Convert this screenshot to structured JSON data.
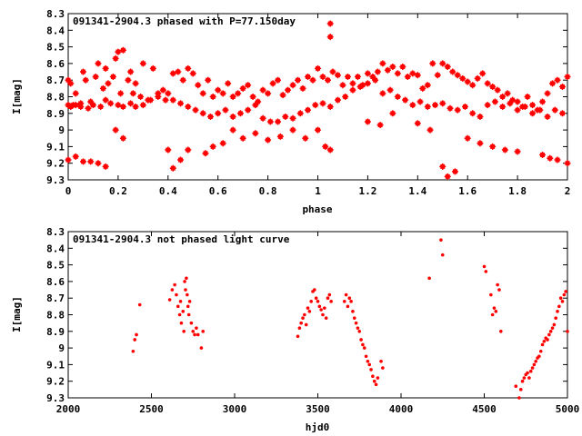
{
  "chart_data": [
    {
      "type": "scatter",
      "title": "091341-2904.3 phased with P=77.150day",
      "xlabel": "phase",
      "ylabel": "I[mag]",
      "xlim": [
        0,
        2
      ],
      "ylim": [
        8.3,
        9.3
      ],
      "y_inverted": true,
      "x_ticks": [
        0,
        0.2,
        0.4,
        0.6,
        0.8,
        1,
        1.2,
        1.4,
        1.6,
        1.8,
        2
      ],
      "x_tick_labels": [
        "0",
        "0.2",
        "0.4",
        "0.6",
        "0.8",
        "1",
        "1.2",
        "1.4",
        "1.6",
        "1.8",
        "2"
      ],
      "y_ticks": [
        8.3,
        8.4,
        8.5,
        8.6,
        8.7,
        8.8,
        8.9,
        9,
        9.1,
        9.2,
        9.3
      ],
      "y_tick_labels": [
        "8.3",
        "8.4",
        "8.5",
        "8.6",
        "8.7",
        "8.8",
        "8.9",
        "9",
        "9.1",
        "9.2",
        "9.3"
      ],
      "marker": "star",
      "marker_color": "#ff0000",
      "grid": false,
      "series": [
        {
          "x": [
            0.0,
            0.01,
            0.02,
            0.03,
            0.05,
            0.06,
            0.07,
            0.09,
            0.11,
            0.12,
            0.14,
            0.15,
            0.16,
            0.18,
            0.19,
            0.2,
            0.21,
            0.22,
            0.24,
            0.25,
            0.26,
            0.27,
            0.29,
            0.3,
            0.32,
            0.34,
            0.36,
            0.38,
            0.4,
            0.42,
            0.44,
            0.46,
            0.48,
            0.5,
            0.52,
            0.54,
            0.56,
            0.58,
            0.6,
            0.62,
            0.64,
            0.66,
            0.68,
            0.7,
            0.72,
            0.74,
            0.76,
            0.78,
            0.8,
            0.82,
            0.84,
            0.86,
            0.88,
            0.9,
            0.92,
            0.94,
            0.96,
            0.98,
            1.0,
            1.02,
            1.04,
            1.06,
            1.08,
            1.1,
            1.12,
            1.14,
            1.16,
            1.18,
            1.2,
            1.22,
            1.24,
            1.26,
            1.28,
            1.3,
            1.32,
            1.34,
            1.36,
            1.38,
            1.4,
            1.42,
            1.44,
            1.46,
            1.48,
            1.5,
            1.52,
            1.54,
            1.56,
            1.58,
            1.6,
            1.62,
            1.64,
            1.66,
            1.68,
            1.7,
            1.72,
            1.74,
            1.76,
            1.78,
            1.8,
            1.82,
            1.84,
            1.86,
            1.88,
            1.9,
            1.92,
            1.94,
            1.96,
            1.98,
            2.0,
            0.0,
            0.01,
            0.03,
            0.05,
            0.08,
            0.1,
            0.13,
            0.15,
            0.17,
            0.2,
            0.22,
            0.25,
            0.27,
            0.3,
            0.33,
            0.36,
            0.39,
            0.42,
            0.45,
            0.48,
            0.51,
            0.54,
            0.57,
            0.6,
            0.63,
            0.66,
            0.69,
            0.72,
            0.75,
            0.78,
            0.81,
            0.84,
            0.87,
            0.9,
            0.93,
            0.96,
            0.99,
            1.02,
            1.05,
            1.08,
            1.11,
            1.14,
            1.17,
            1.2,
            1.23,
            1.26,
            1.29,
            1.32,
            1.35,
            1.38,
            1.41,
            1.44,
            1.47,
            1.5,
            1.53,
            1.56,
            1.59,
            1.62,
            1.65,
            1.68,
            1.71,
            1.74,
            1.77,
            1.8,
            1.83,
            1.86,
            1.89,
            1.92,
            1.95,
            1.98,
            0.0,
            0.03,
            0.06,
            0.09,
            0.12,
            0.15,
            0.19,
            0.22,
            0.4,
            0.42,
            0.45,
            0.48,
            0.55,
            0.58,
            0.62,
            0.66,
            0.7,
            0.75,
            0.8,
            0.85,
            0.9,
            0.95,
            1.05,
            1.2,
            1.25,
            1.3,
            1.4,
            1.45,
            1.5,
            1.52,
            1.55,
            1.6,
            1.65,
            1.7,
            1.75,
            1.8,
            1.9,
            1.93,
            1.96,
            2.0,
            1.05,
            1.05,
            1.03,
            1.0
          ],
          "y": [
            8.7,
            8.72,
            8.85,
            8.78,
            8.86,
            8.65,
            8.7,
            8.83,
            8.68,
            8.6,
            8.75,
            8.63,
            8.72,
            8.68,
            8.57,
            8.53,
            8.78,
            8.52,
            8.7,
            8.65,
            8.78,
            8.72,
            8.8,
            8.6,
            8.82,
            8.63,
            8.78,
            8.76,
            8.78,
            8.66,
            8.65,
            8.7,
            8.63,
            8.66,
            8.73,
            8.78,
            8.7,
            8.8,
            8.76,
            8.78,
            8.72,
            8.8,
            8.78,
            8.75,
            8.73,
            8.8,
            8.83,
            8.76,
            8.78,
            8.72,
            8.7,
            8.79,
            8.76,
            8.73,
            8.7,
            8.75,
            8.68,
            8.7,
            8.63,
            8.68,
            8.7,
            8.65,
            8.67,
            8.73,
            8.68,
            8.72,
            8.68,
            8.73,
            8.66,
            8.68,
            8.65,
            8.6,
            8.64,
            8.62,
            8.66,
            8.62,
            8.68,
            8.66,
            8.67,
            8.75,
            8.73,
            8.6,
            8.67,
            8.6,
            8.62,
            8.65,
            8.67,
            8.69,
            8.71,
            8.73,
            8.69,
            8.66,
            8.72,
            8.74,
            8.76,
            8.8,
            8.78,
            8.82,
            8.83,
            8.86,
            8.8,
            8.85,
            8.88,
            8.83,
            8.78,
            8.72,
            8.7,
            8.74,
            8.68,
            8.85,
            8.86,
            8.85,
            8.84,
            8.87,
            8.85,
            8.86,
            8.82,
            8.84,
            8.85,
            8.86,
            8.84,
            8.86,
            8.85,
            8.82,
            8.8,
            8.82,
            8.82,
            8.84,
            8.86,
            8.88,
            8.9,
            8.92,
            8.9,
            8.88,
            8.92,
            8.9,
            8.88,
            8.85,
            8.93,
            8.95,
            8.95,
            8.92,
            8.93,
            8.9,
            8.88,
            8.85,
            8.84,
            8.86,
            8.82,
            8.8,
            8.76,
            8.74,
            8.72,
            8.7,
            8.78,
            8.76,
            8.8,
            8.82,
            8.85,
            8.83,
            8.86,
            8.85,
            8.84,
            8.87,
            8.88,
            8.86,
            8.9,
            8.92,
            8.85,
            8.83,
            8.86,
            8.84,
            8.88,
            8.86,
            8.9,
            8.88,
            8.92,
            8.88,
            8.9,
            9.18,
            9.16,
            9.19,
            9.19,
            9.2,
            9.22,
            9.0,
            9.05,
            9.12,
            9.23,
            9.18,
            9.12,
            9.14,
            9.1,
            9.08,
            9.0,
            9.05,
            9.02,
            9.06,
            9.04,
            9.0,
            9.05,
            9.12,
            8.95,
            8.97,
            8.9,
            8.96,
            9.0,
            9.22,
            9.28,
            9.25,
            9.05,
            9.08,
            9.1,
            9.12,
            9.13,
            9.15,
            9.17,
            9.18,
            9.2,
            8.36,
            8.44,
            9.1,
            9.0
          ]
        }
      ]
    },
    {
      "type": "scatter",
      "title": "091341-2904.3 not phased light curve",
      "xlabel": "hjd0",
      "ylabel": "I[mag]",
      "xlim": [
        2000,
        5000
      ],
      "ylim": [
        8.3,
        9.3
      ],
      "y_inverted": true,
      "x_ticks": [
        2000,
        2500,
        3000,
        3500,
        4000,
        4500,
        5000
      ],
      "x_tick_labels": [
        "2000",
        "2500",
        "3000",
        "3500",
        "4000",
        "4500",
        "5000"
      ],
      "y_ticks": [
        8.3,
        8.4,
        8.5,
        8.6,
        8.7,
        8.8,
        8.9,
        9,
        9.1,
        9.2,
        9.3
      ],
      "y_tick_labels": [
        "8.3",
        "8.4",
        "8.5",
        "8.6",
        "8.7",
        "8.8",
        "8.9",
        "9",
        "9.1",
        "9.2",
        "9.3"
      ],
      "marker": "dot",
      "marker_color": "#ff0000",
      "grid": false,
      "series": [
        {
          "x": [
            2390,
            2400,
            2410,
            2430,
            2610,
            2625,
            2640,
            2650,
            2660,
            2670,
            2675,
            2680,
            2690,
            2695,
            2700,
            2705,
            2710,
            2715,
            2720,
            2725,
            2730,
            2740,
            2750,
            2760,
            2770,
            2780,
            2800,
            2810,
            3380,
            3390,
            3400,
            3410,
            3420,
            3430,
            3440,
            3450,
            3460,
            3470,
            3480,
            3490,
            3500,
            3510,
            3520,
            3530,
            3540,
            3550,
            3560,
            3570,
            3580,
            3660,
            3670,
            3680,
            3690,
            3700,
            3710,
            3720,
            3730,
            3740,
            3750,
            3760,
            3770,
            3780,
            3790,
            3800,
            3810,
            3820,
            3830,
            3840,
            3850,
            3860,
            3880,
            3890,
            4170,
            4240,
            4250,
            4500,
            4510,
            4540,
            4550,
            4560,
            4570,
            4580,
            4590,
            4600,
            4690,
            4710,
            4720,
            4730,
            4740,
            4750,
            4760,
            4770,
            4780,
            4790,
            4800,
            4810,
            4820,
            4830,
            4840,
            4850,
            4860,
            4870,
            4880,
            4890,
            4900,
            4910,
            4920,
            4930,
            4940,
            4950,
            4960,
            4970,
            4980,
            4990,
            5000
          ],
          "y": [
            9.02,
            8.95,
            8.92,
            8.74,
            8.71,
            8.65,
            8.62,
            8.68,
            8.75,
            8.8,
            8.72,
            8.85,
            8.78,
            8.9,
            8.6,
            8.65,
            8.58,
            8.68,
            8.75,
            8.8,
            8.72,
            8.85,
            8.9,
            8.92,
            8.88,
            8.92,
            9.0,
            8.9,
            8.93,
            8.88,
            8.85,
            8.82,
            8.8,
            8.86,
            8.76,
            8.78,
            8.72,
            8.66,
            8.65,
            8.7,
            8.72,
            8.75,
            8.77,
            8.8,
            8.76,
            8.82,
            8.7,
            8.68,
            8.72,
            8.72,
            8.68,
            8.75,
            8.7,
            8.72,
            8.78,
            8.82,
            8.85,
            8.88,
            8.9,
            8.95,
            8.98,
            9.0,
            9.05,
            9.08,
            9.1,
            9.13,
            9.17,
            9.2,
            9.22,
            9.18,
            9.08,
            9.12,
            8.58,
            8.35,
            8.44,
            8.51,
            8.54,
            8.68,
            8.8,
            8.76,
            8.78,
            8.62,
            8.65,
            8.9,
            9.23,
            9.3,
            9.25,
            9.2,
            9.18,
            9.16,
            9.15,
            9.18,
            9.14,
            9.12,
            9.1,
            9.08,
            9.06,
            9.05,
            9.02,
            8.98,
            8.96,
            8.94,
            8.95,
            8.92,
            8.9,
            8.88,
            8.86,
            8.82,
            8.78,
            8.75,
            8.7,
            8.72,
            8.68,
            8.66,
            8.9
          ]
        }
      ]
    }
  ]
}
